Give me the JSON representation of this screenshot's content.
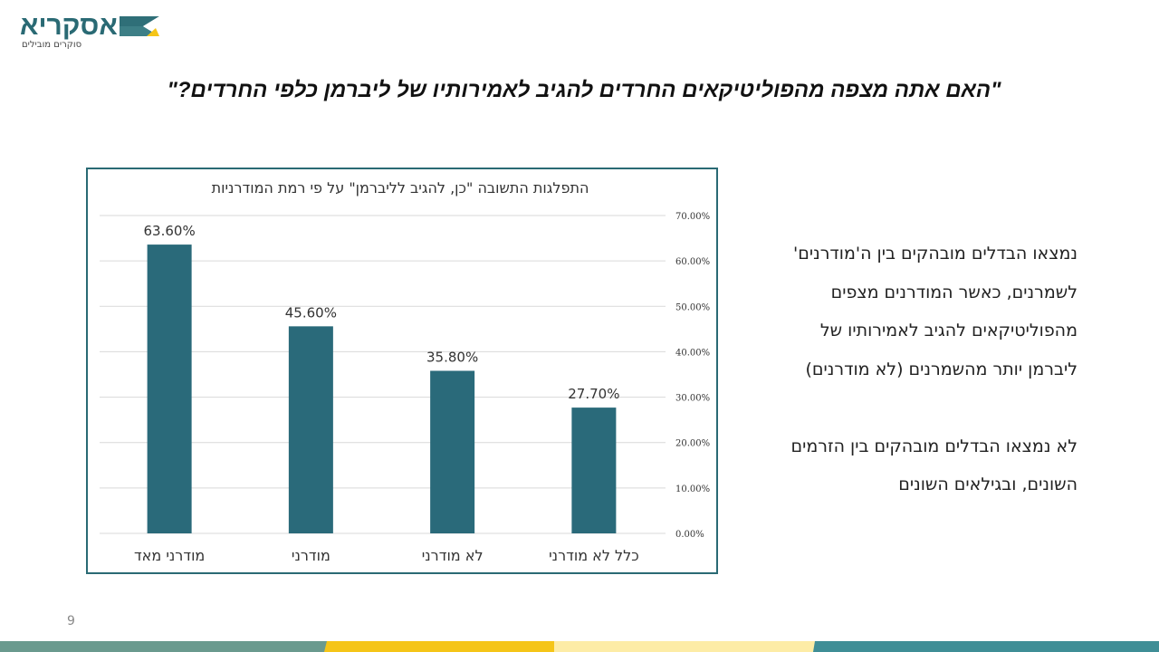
{
  "logo": {
    "name": "אסקריא",
    "tagline": "סוקרים מובילים",
    "colors": {
      "teal": "#2a6a74",
      "yellow": "#f5c518"
    }
  },
  "title": "\"האם אתה מצפה מהפוליטיקאים החרדים להגיב לאמירותיו של ליברמן כלפי החרדים?\"",
  "paragraph": {
    "lines": [
      "נמצאו הבדלים מובהקים בין ה'מודרנים'",
      "לשמרנים, כאשר המודרנים מצפים",
      "מהפוליטיקאים להגיב לאמירותיו של",
      "ליברמן יותר מהשמרנים (לא מודרנים)",
      "",
      "לא נמצאו הבדלים מובהקים בין הזרמים",
      "השונים, ובגילאים השונים"
    ]
  },
  "page_number": "9",
  "chart_data": {
    "type": "bar",
    "title": "התפלגות התשובה \"כן, להגיב לליברמן\" על פי רמת המודרניות",
    "categories": [
      "מודרני מאד",
      "מודרני",
      "לא מודרני",
      "כלל לא מודרני"
    ],
    "values": [
      63.6,
      45.6,
      35.8,
      27.7
    ],
    "data_labels": [
      "63.60%",
      "45.60%",
      "35.80%",
      "27.70%"
    ],
    "ylim": [
      0,
      70
    ],
    "y_ticks": [
      "0.00%",
      "10.00%",
      "20.00%",
      "30.00%",
      "40.00%",
      "50.00%",
      "60.00%",
      "70.00%"
    ],
    "y_axis_side": "right",
    "grid": true,
    "bar_color": "#2a6a7a",
    "xlabel": "",
    "ylabel": ""
  },
  "footer_colors": [
    "#6a9a8e",
    "#f5c518",
    "#fdeca6",
    "#3f8e96"
  ]
}
